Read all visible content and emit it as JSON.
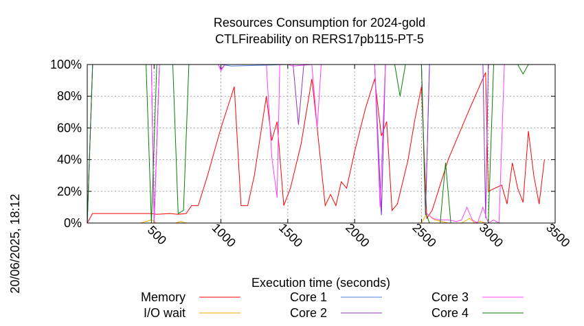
{
  "chart_data": {
    "type": "line",
    "title": [
      "Resources Consumption for 2024-gold",
      "CTLFireability on RERS17pb115-PT-5"
    ],
    "xlabel": "Execution time (seconds)",
    "ylabel": "",
    "side_label": "20/06/2025, 18:12",
    "xlim": [
      0,
      3500
    ],
    "ylim": [
      0,
      100
    ],
    "x_ticks": [
      500,
      1000,
      1500,
      2000,
      2500,
      3000,
      3500
    ],
    "y_ticks": [
      0,
      20,
      40,
      60,
      80,
      100
    ],
    "y_tick_labels": [
      "0%",
      "20%",
      "40%",
      "60%",
      "80%",
      "100%"
    ],
    "grid": true,
    "legend_position": "bottom",
    "series": [
      {
        "name": "Memory",
        "color": "#ff0000",
        "points": [
          [
            0,
            0
          ],
          [
            40,
            6
          ],
          [
            100,
            6
          ],
          [
            200,
            6
          ],
          [
            300,
            6
          ],
          [
            400,
            6
          ],
          [
            480,
            6
          ],
          [
            520,
            5.5
          ],
          [
            620,
            6
          ],
          [
            680,
            5.5
          ],
          [
            740,
            6
          ],
          [
            780,
            11
          ],
          [
            830,
            11
          ],
          [
            900,
            30
          ],
          [
            1000,
            60
          ],
          [
            1100,
            86
          ],
          [
            1150,
            11
          ],
          [
            1200,
            11
          ],
          [
            1250,
            30
          ],
          [
            1340,
            80
          ],
          [
            1380,
            52
          ],
          [
            1420,
            64
          ],
          [
            1470,
            11
          ],
          [
            1520,
            22
          ],
          [
            1600,
            50
          ],
          [
            1680,
            91
          ],
          [
            1720,
            60
          ],
          [
            1780,
            11
          ],
          [
            1820,
            18
          ],
          [
            1860,
            11
          ],
          [
            1900,
            26
          ],
          [
            1940,
            22
          ],
          [
            2000,
            45
          ],
          [
            2080,
            72
          ],
          [
            2150,
            91
          ],
          [
            2200,
            55
          ],
          [
            2240,
            64
          ],
          [
            2280,
            8
          ],
          [
            2320,
            12
          ],
          [
            2400,
            40
          ],
          [
            2450,
            65
          ],
          [
            2500,
            86
          ],
          [
            2540,
            3
          ],
          [
            2580,
            8
          ],
          [
            2700,
            40
          ],
          [
            2850,
            70
          ],
          [
            2980,
            95
          ],
          [
            3000,
            20
          ],
          [
            3100,
            24
          ],
          [
            3140,
            12
          ],
          [
            3180,
            38
          ],
          [
            3220,
            22
          ],
          [
            3260,
            13
          ],
          [
            3300,
            58
          ],
          [
            3340,
            30
          ],
          [
            3380,
            12
          ],
          [
            3420,
            40
          ]
        ]
      },
      {
        "name": "I/O wait",
        "color": "#ffa500",
        "points": [
          [
            0,
            0
          ],
          [
            100,
            0
          ],
          [
            400,
            0
          ],
          [
            480,
            2
          ],
          [
            520,
            0
          ],
          [
            660,
            0
          ],
          [
            700,
            1
          ],
          [
            740,
            0
          ],
          [
            1000,
            0
          ],
          [
            2500,
            0
          ],
          [
            2540,
            6
          ],
          [
            2600,
            2
          ],
          [
            2700,
            0
          ],
          [
            2800,
            0
          ],
          [
            2860,
            3
          ],
          [
            2900,
            0
          ],
          [
            2940,
            1
          ],
          [
            2980,
            0
          ],
          [
            3420,
            0
          ]
        ]
      },
      {
        "name": "Core 1",
        "color": "#5080e0",
        "points": [
          [
            0,
            0
          ],
          [
            40,
            100
          ],
          [
            480,
            100
          ],
          [
            500,
            0
          ],
          [
            540,
            100
          ],
          [
            1000,
            100
          ],
          [
            1080,
            99
          ],
          [
            1500,
            100
          ],
          [
            2150,
            100
          ],
          [
            2180,
            45
          ],
          [
            2200,
            5
          ],
          [
            2230,
            100
          ],
          [
            2500,
            100
          ],
          [
            2530,
            5
          ],
          [
            2560,
            100
          ],
          [
            3420,
            100
          ]
        ]
      },
      {
        "name": "Core 2",
        "color": "#9030c0",
        "points": [
          [
            0,
            0
          ],
          [
            40,
            100
          ],
          [
            480,
            100
          ],
          [
            500,
            0
          ],
          [
            540,
            100
          ],
          [
            980,
            100
          ],
          [
            1000,
            97
          ],
          [
            1030,
            100
          ],
          [
            1500,
            100
          ],
          [
            1540,
            100
          ],
          [
            1580,
            62
          ],
          [
            1620,
            100
          ],
          [
            2100,
            100
          ],
          [
            2150,
            100
          ],
          [
            2180,
            40
          ],
          [
            2200,
            5
          ],
          [
            2230,
            100
          ],
          [
            2500,
            100
          ],
          [
            2530,
            5
          ],
          [
            2560,
            100
          ],
          [
            2960,
            100
          ],
          [
            2980,
            3
          ],
          [
            3000,
            100
          ],
          [
            3420,
            100
          ]
        ]
      },
      {
        "name": "Core 3",
        "color": "#ff40ff",
        "points": [
          [
            0,
            0
          ],
          [
            40,
            100
          ],
          [
            480,
            100
          ],
          [
            500,
            0
          ],
          [
            540,
            100
          ],
          [
            980,
            100
          ],
          [
            1000,
            96
          ],
          [
            1030,
            100
          ],
          [
            1340,
            100
          ],
          [
            1380,
            42
          ],
          [
            1420,
            16
          ],
          [
            1440,
            100
          ],
          [
            1500,
            100
          ],
          [
            1540,
            99
          ],
          [
            1680,
            100
          ],
          [
            1720,
            60
          ],
          [
            1750,
            100
          ],
          [
            2100,
            100
          ],
          [
            2150,
            100
          ],
          [
            2190,
            10
          ],
          [
            2230,
            100
          ],
          [
            2500,
            100
          ],
          [
            2530,
            7
          ],
          [
            2580,
            3
          ],
          [
            2640,
            2
          ],
          [
            2700,
            2
          ],
          [
            2760,
            1
          ],
          [
            2800,
            2
          ],
          [
            2840,
            10
          ],
          [
            2880,
            2
          ],
          [
            2920,
            0
          ],
          [
            2960,
            10
          ],
          [
            3000,
            0
          ],
          [
            3040,
            2
          ],
          [
            3080,
            0
          ],
          [
            3120,
            100
          ],
          [
            3420,
            100
          ]
        ]
      },
      {
        "name": "Core 4",
        "color": "#008000",
        "points": [
          [
            0,
            0
          ],
          [
            40,
            100
          ],
          [
            440,
            100
          ],
          [
            480,
            0
          ],
          [
            520,
            100
          ],
          [
            640,
            100
          ],
          [
            680,
            6
          ],
          [
            720,
            8
          ],
          [
            760,
            100
          ],
          [
            2180,
            100
          ],
          [
            2230,
            100
          ],
          [
            2300,
            100
          ],
          [
            2340,
            80
          ],
          [
            2380,
            100
          ],
          [
            2500,
            100
          ],
          [
            2530,
            7
          ],
          [
            2560,
            0
          ],
          [
            2640,
            0
          ],
          [
            2680,
            38
          ],
          [
            2720,
            0
          ],
          [
            2800,
            0
          ],
          [
            3000,
            0
          ],
          [
            3040,
            100
          ],
          [
            3220,
            100
          ],
          [
            3260,
            94
          ],
          [
            3300,
            100
          ],
          [
            3420,
            100
          ]
        ]
      }
    ]
  }
}
